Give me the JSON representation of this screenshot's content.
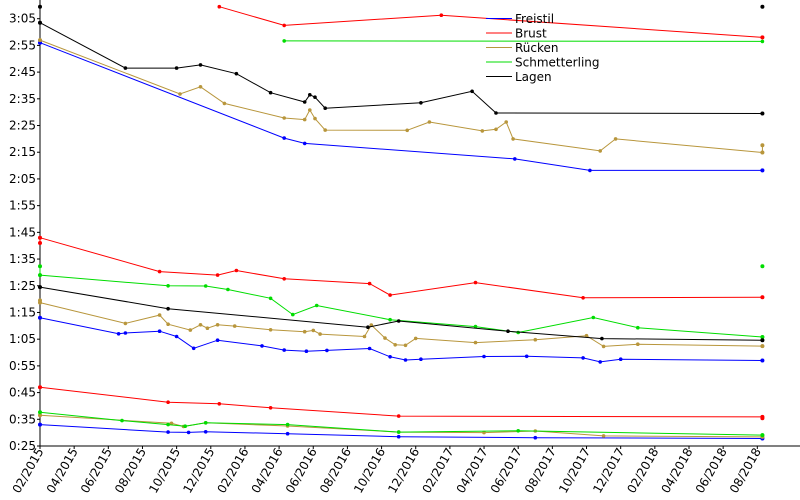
{
  "chart_data": {
    "type": "line",
    "title": "",
    "xlabel": "",
    "ylabel": "",
    "x_unit": "months since 2015-02",
    "y_unit": "seconds",
    "xlim": [
      0,
      44.5
    ],
    "ylim": [
      25,
      192
    ],
    "x_ticks": [
      {
        "x": 0,
        "label": "02/2015"
      },
      {
        "x": 2,
        "label": "04/2015"
      },
      {
        "x": 4,
        "label": "06/2015"
      },
      {
        "x": 6,
        "label": "08/2015"
      },
      {
        "x": 8,
        "label": "10/2015"
      },
      {
        "x": 10,
        "label": "12/2015"
      },
      {
        "x": 12,
        "label": "02/2016"
      },
      {
        "x": 14,
        "label": "04/2016"
      },
      {
        "x": 16,
        "label": "06/2016"
      },
      {
        "x": 18,
        "label": "08/2016"
      },
      {
        "x": 20,
        "label": "10/2016"
      },
      {
        "x": 22,
        "label": "12/2016"
      },
      {
        "x": 24,
        "label": "02/2017"
      },
      {
        "x": 26,
        "label": "04/2017"
      },
      {
        "x": 28,
        "label": "06/2017"
      },
      {
        "x": 30,
        "label": "08/2017"
      },
      {
        "x": 32,
        "label": "10/2017"
      },
      {
        "x": 34,
        "label": "12/2017"
      },
      {
        "x": 36,
        "label": "02/2018"
      },
      {
        "x": 38,
        "label": "04/2018"
      },
      {
        "x": 40,
        "label": "06/2018"
      },
      {
        "x": 42,
        "label": "08/2018"
      }
    ],
    "y_ticks": [
      {
        "y": 25,
        "label": "0:25"
      },
      {
        "y": 35,
        "label": "0:35"
      },
      {
        "y": 45,
        "label": "0:45"
      },
      {
        "y": 55,
        "label": "0:55"
      },
      {
        "y": 65,
        "label": "1:05"
      },
      {
        "y": 75,
        "label": "1:15"
      },
      {
        "y": 85,
        "label": "1:25"
      },
      {
        "y": 95,
        "label": "1:35"
      },
      {
        "y": 105,
        "label": "1:45"
      },
      {
        "y": 115,
        "label": "1:55"
      },
      {
        "y": 125,
        "label": "2:05"
      },
      {
        "y": 135,
        "label": "2:15"
      },
      {
        "y": 145,
        "label": "2:25"
      },
      {
        "y": 155,
        "label": "2:35"
      },
      {
        "y": 165,
        "label": "2:45"
      },
      {
        "y": 175,
        "label": "2:55"
      },
      {
        "y": 185,
        "label": "3:05"
      }
    ],
    "legend": {
      "position": "top-right"
    },
    "series": [
      {
        "name": "Freistil",
        "color": "#0000ff",
        "segments": [
          [
            [
              0,
              176
            ],
            [
              14.3,
              140.3
            ],
            [
              15.5,
              138.3
            ],
            [
              27.8,
              132.5
            ],
            [
              32.2,
              128.2
            ],
            [
              42.3,
              128.2
            ]
          ],
          [
            [
              0,
              73
            ],
            [
              4.6,
              67
            ],
            [
              5,
              67.3
            ],
            [
              7,
              68
            ],
            [
              8,
              66
            ],
            [
              9,
              61.6
            ],
            [
              10.4,
              64.6
            ],
            [
              13,
              62.5
            ],
            [
              14.3,
              60.9
            ],
            [
              15.6,
              60.5
            ],
            [
              16.8,
              60.8
            ],
            [
              19.3,
              61.5
            ],
            [
              20.5,
              58.4
            ],
            [
              21.4,
              57.2
            ],
            [
              22.3,
              57.5
            ],
            [
              26,
              58.5
            ],
            [
              28.5,
              58.6
            ],
            [
              31.8,
              58
            ],
            [
              32.8,
              56.5
            ],
            [
              34,
              57.5
            ],
            [
              42.3,
              57
            ]
          ],
          [
            [
              0,
              33
            ],
            [
              7.5,
              30.2
            ],
            [
              8.7,
              30.1
            ],
            [
              9.7,
              30.3
            ],
            [
              14.5,
              29.6
            ],
            [
              21,
              28.5
            ],
            [
              29,
              28.1
            ],
            [
              42.3,
              27.8
            ]
          ]
        ]
      },
      {
        "name": "Brust",
        "color": "#ff0000",
        "segments": [
          [
            [
              10.5,
              189.5
            ],
            [
              14.3,
              182.5
            ],
            [
              23.5,
              186.3
            ],
            [
              42.3,
              178
            ]
          ],
          [
            [
              0,
              103
            ],
            [
              7,
              90.3
            ],
            [
              10.4,
              89
            ],
            [
              11.5,
              90.7
            ],
            [
              14.3,
              87.6
            ],
            [
              19.3,
              85.8
            ],
            [
              20.5,
              81.5
            ],
            [
              25.5,
              86.2
            ],
            [
              31.8,
              80.5
            ],
            [
              42.3,
              80.7
            ]
          ],
          [
            [
              0,
              47
            ],
            [
              7.5,
              41.4
            ],
            [
              10.5,
              40.8
            ],
            [
              13.5,
              39.3
            ],
            [
              21,
              36.2
            ],
            [
              42.3,
              35.9
            ]
          ]
        ]
      },
      {
        "name": "Rücken",
        "color": "#b8963c",
        "segments": [
          [
            [
              0,
              177
            ],
            [
              8.2,
              156.8
            ],
            [
              9.4,
              159.5
            ],
            [
              10.8,
              153.3
            ],
            [
              14.3,
              147.8
            ],
            [
              15.5,
              147.2
            ],
            [
              15.8,
              150.8
            ],
            [
              16.1,
              147.6
            ],
            [
              16.7,
              143.3
            ],
            [
              21.5,
              143.2
            ],
            [
              22.8,
              146.3
            ],
            [
              25.9,
              143
            ],
            [
              26.7,
              143.6
            ],
            [
              27.3,
              146.3
            ],
            [
              27.7,
              140
            ],
            [
              32.8,
              135.5
            ],
            [
              33.7,
              140
            ],
            [
              42.3,
              134.9
            ]
          ],
          [
            [
              0,
              78.7
            ],
            [
              5,
              70.9
            ],
            [
              7,
              74
            ],
            [
              7.5,
              70.6
            ],
            [
              8.8,
              68.4
            ],
            [
              9.4,
              70.4
            ],
            [
              9.8,
              69.1
            ],
            [
              10.4,
              70.4
            ],
            [
              11.4,
              69.9
            ],
            [
              13.5,
              68.5
            ],
            [
              15.5,
              67.8
            ],
            [
              16,
              68.3
            ],
            [
              16.4,
              66.9
            ],
            [
              19,
              66
            ],
            [
              19.4,
              70.3
            ],
            [
              20.2,
              65.4
            ],
            [
              20.8,
              62.9
            ],
            [
              21.4,
              62.7
            ],
            [
              22,
              65.3
            ],
            [
              25.5,
              63.7
            ],
            [
              29,
              64.8
            ],
            [
              32,
              66.3
            ],
            [
              33,
              62.3
            ],
            [
              35,
              63.1
            ],
            [
              42.3,
              62.4
            ]
          ],
          [
            [
              0,
              36.5
            ],
            [
              7.7,
              33.5
            ],
            [
              8.4,
              32.3
            ],
            [
              9.7,
              33.7
            ],
            [
              14.5,
              32.5
            ],
            [
              21,
              30.2
            ],
            [
              26,
              30
            ],
            [
              29,
              30.6
            ],
            [
              33,
              28.8
            ],
            [
              42.3,
              28.4
            ]
          ]
        ]
      },
      {
        "name": "Schmetterling",
        "color": "#00dd00",
        "segments": [
          [
            [
              14.3,
              176.7
            ],
            [
              42.3,
              176.5
            ]
          ],
          [
            [
              0,
              89
            ],
            [
              7.5,
              85
            ],
            [
              9.7,
              84.9
            ],
            [
              11,
              83.6
            ],
            [
              13.5,
              80.3
            ],
            [
              14.8,
              74.2
            ],
            [
              16.2,
              77.6
            ],
            [
              20.5,
              72.3
            ],
            [
              25.5,
              69.7
            ],
            [
              28,
              67.5
            ],
            [
              32.4,
              73.1
            ],
            [
              35,
              69.3
            ],
            [
              42.3,
              65.8
            ]
          ],
          [
            [
              0,
              37.6
            ],
            [
              4.8,
              34.5
            ],
            [
              7.5,
              33
            ],
            [
              8.5,
              32.4
            ],
            [
              9.7,
              33.7
            ],
            [
              14.5,
              33
            ],
            [
              21,
              30.2
            ],
            [
              28,
              30.7
            ],
            [
              42.3,
              29.1
            ]
          ]
        ]
      },
      {
        "name": "Lagen",
        "color": "#000000",
        "segments": [
          [
            [
              0,
              183.5
            ],
            [
              5,
              166.5
            ],
            [
              8,
              166.5
            ],
            [
              9.4,
              167.7
            ],
            [
              11.5,
              164.4
            ],
            [
              13.5,
              157.3
            ],
            [
              15.5,
              153.8
            ],
            [
              15.8,
              156.5
            ],
            [
              16.1,
              155.6
            ],
            [
              16.7,
              151.5
            ],
            [
              22.3,
              153.5
            ],
            [
              25.3,
              157.8
            ],
            [
              26.7,
              149.7
            ],
            [
              42.3,
              149.5
            ]
          ],
          [
            [
              0,
              84.5
            ],
            [
              7.5,
              76.4
            ],
            [
              19.2,
              69.5
            ],
            [
              21,
              71.8
            ],
            [
              27.4,
              68
            ],
            [
              32.9,
              65.2
            ],
            [
              42.3,
              64.6
            ]
          ]
        ]
      }
    ],
    "marker_clusters": [
      {
        "series": "Freistil",
        "x": 0,
        "y": [
          176,
          73,
          33
        ]
      },
      {
        "series": "Freistil",
        "x": 42.3,
        "y": [
          128.2,
          57,
          27.8
        ]
      },
      {
        "series": "Brust",
        "x": 0,
        "y": [
          103,
          101,
          47
        ]
      },
      {
        "series": "Brust",
        "x": 42.3,
        "y": [
          178,
          80.7,
          35.4,
          35.9
        ]
      },
      {
        "series": "Rücken",
        "x": 0,
        "y": [
          177,
          79.5,
          78.7,
          36.5
        ]
      },
      {
        "series": "Rücken",
        "x": 42.3,
        "y": [
          137.6,
          134.9,
          62.4,
          28.4
        ]
      },
      {
        "series": "Schmetterling",
        "x": 0,
        "y": [
          92.3,
          89,
          37.6
        ]
      },
      {
        "series": "Schmetterling",
        "x": 42.3,
        "y": [
          92.3,
          65.8,
          29.1
        ]
      },
      {
        "series": "Lagen",
        "x": 0,
        "y": [
          189.5,
          183.5,
          84.5
        ]
      },
      {
        "series": "Lagen",
        "x": 42.3,
        "y": [
          189.5,
          149.5,
          64.6
        ]
      }
    ]
  }
}
